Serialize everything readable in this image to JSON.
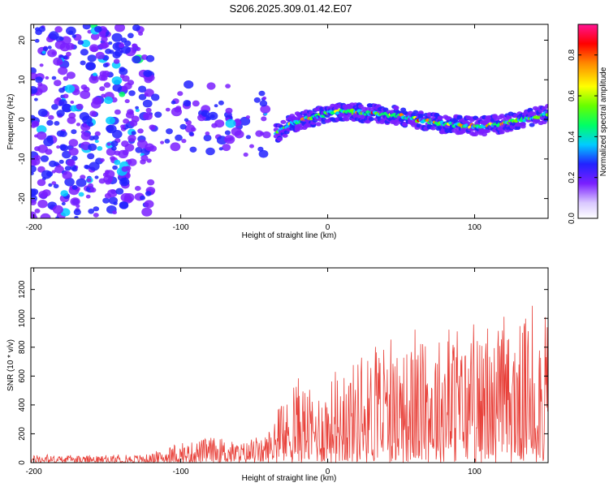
{
  "title": "S206.2025.309.01.42.E07",
  "chart_data": [
    {
      "type": "heatmap",
      "xlabel": "Height of straight line (km)",
      "ylabel": "Frequency (Hz)",
      "xlim": [
        -202,
        150
      ],
      "ylim": [
        -25,
        24
      ],
      "xticks": [
        -200,
        -100,
        0,
        100
      ],
      "yticks": [
        -20,
        -10,
        0,
        10,
        20
      ],
      "colorbar": {
        "label": "Normalized spectral amplitude",
        "range": [
          0,
          0.95
        ],
        "ticks": [
          0.0,
          0.2,
          0.4,
          0.6,
          0.8
        ]
      },
      "ridge": {
        "x": [
          -35,
          -25,
          -15,
          0,
          10,
          20,
          30,
          40,
          50,
          60,
          70,
          80,
          90,
          100,
          110,
          120,
          130,
          140,
          150
        ],
        "freq": [
          -3.5,
          -1,
          0,
          1.5,
          2,
          1.8,
          1.5,
          1.2,
          0.8,
          0,
          -0.5,
          -1.2,
          -1.5,
          -1.8,
          -1.5,
          -1,
          -0.3,
          0.5,
          1.5
        ]
      }
    },
    {
      "type": "line",
      "xlabel": "Height of straight line (km)",
      "ylabel": "SNR (10 * v/v)",
      "xlim": [
        -202,
        150
      ],
      "ylim": [
        0,
        1350
      ],
      "xticks": [
        -200,
        -100,
        0,
        100
      ],
      "yticks": [
        0,
        200,
        400,
        600,
        800,
        1000,
        1200
      ],
      "color": "#e8413a",
      "envelope": {
        "x": [
          -202,
          -150,
          -120,
          -100,
          -80,
          -60,
          -45,
          -30,
          -20,
          -10,
          0,
          20,
          40,
          60,
          80,
          100,
          120,
          140,
          150
        ],
        "max": [
          50,
          45,
          60,
          120,
          180,
          140,
          160,
          380,
          600,
          480,
          560,
          720,
          760,
          820,
          900,
          840,
          880,
          1050,
          1000
        ]
      }
    }
  ]
}
